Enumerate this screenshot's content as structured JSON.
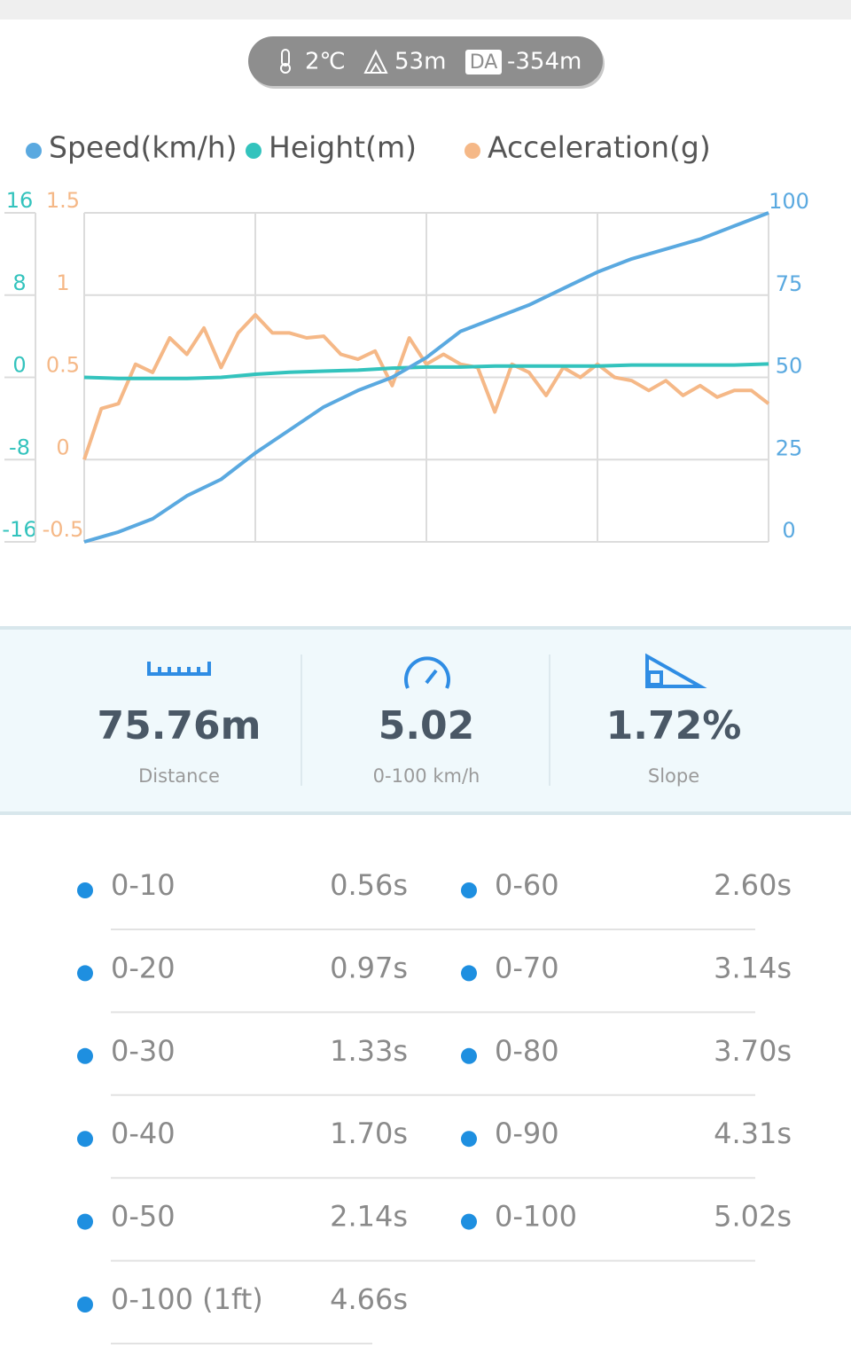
{
  "header": {
    "temperature": "2℃",
    "altitude": "53m",
    "da_label": "DA",
    "density_altitude": "-354m"
  },
  "chart_data": {
    "type": "line",
    "ylim": [
      0,
      100
    ],
    "yticks": [
      0,
      25,
      50,
      75,
      100
    ],
    "y2lim": [
      -16,
      16
    ],
    "y2ticks": [
      -16,
      -8,
      0,
      8,
      16
    ],
    "y3lim": [
      -0.5,
      1.5
    ],
    "y3ticks": [
      -0.5,
      0,
      0.5,
      1,
      1.5
    ],
    "grid": true,
    "series": [
      {
        "name": "Speed(km/h)",
        "color": "#5aa9e0",
        "axis": "y",
        "values": [
          0,
          3,
          7,
          14,
          19,
          27,
          34,
          41,
          46,
          50,
          56,
          64,
          68,
          72,
          77,
          82,
          86,
          89,
          92,
          96,
          100
        ]
      },
      {
        "name": "Height(m)",
        "color": "#33c3bd",
        "axis": "y2",
        "values": [
          0,
          -0.1,
          -0.1,
          -0.1,
          0,
          0.3,
          0.5,
          0.6,
          0.7,
          0.9,
          1.0,
          1.0,
          1.1,
          1.1,
          1.1,
          1.1,
          1.2,
          1.2,
          1.2,
          1.2,
          1.3
        ]
      },
      {
        "name": "Acceleration(g)",
        "color": "#f5b887",
        "axis": "y3",
        "values": [
          0,
          0.31,
          0.34,
          0.58,
          0.53,
          0.74,
          0.64,
          0.8,
          0.56,
          0.77,
          0.88,
          0.77,
          0.77,
          0.74,
          0.75,
          0.64,
          0.61,
          0.66,
          0.45,
          0.74,
          0.58,
          0.64,
          0.58,
          0.56,
          0.29,
          0.58,
          0.53,
          0.39,
          0.56,
          0.5,
          0.58,
          0.5,
          0.48,
          0.42,
          0.48,
          0.39,
          0.45,
          0.38,
          0.42,
          0.42,
          0.34
        ]
      }
    ]
  },
  "stats": [
    {
      "value": "75.76m",
      "label": "Distance"
    },
    {
      "value": "5.02",
      "label": "0-100 km/h"
    },
    {
      "value": "1.72%",
      "label": "Slope"
    }
  ],
  "splits": [
    {
      "range": "0-10",
      "time": "0.56s"
    },
    {
      "range": "0-20",
      "time": "0.97s"
    },
    {
      "range": "0-30",
      "time": "1.33s"
    },
    {
      "range": "0-40",
      "time": "1.70s"
    },
    {
      "range": "0-50",
      "time": "2.14s"
    },
    {
      "range": "0-60",
      "time": "2.60s"
    },
    {
      "range": "0-70",
      "time": "3.14s"
    },
    {
      "range": "0-80",
      "time": "3.70s"
    },
    {
      "range": "0-90",
      "time": "4.31s"
    },
    {
      "range": "0-100",
      "time": "5.02s"
    },
    {
      "range": "0-100 (1ft)",
      "time": "4.66s"
    }
  ]
}
